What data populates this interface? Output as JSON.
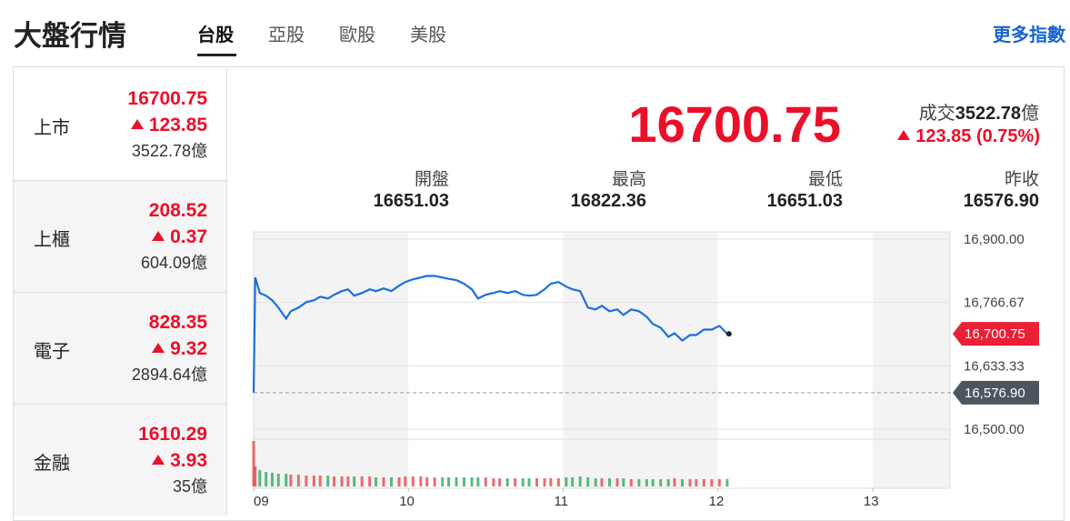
{
  "header": {
    "title": "大盤行情",
    "tabs": [
      "台股",
      "亞股",
      "歐股",
      "美股"
    ],
    "more": "更多指數"
  },
  "unit": "億",
  "indices": [
    {
      "name": "上市",
      "price": "16700.75",
      "change": "123.85",
      "volume": "3522.78"
    },
    {
      "name": "上櫃",
      "price": "208.52",
      "change": "0.37",
      "volume": "604.09"
    },
    {
      "name": "電子",
      "price": "828.35",
      "change": "9.32",
      "volume": "2894.64"
    },
    {
      "name": "金融",
      "price": "1610.29",
      "change": "3.93",
      "volume": "35"
    }
  ],
  "quote": {
    "price": "16700.75",
    "volume_label": "成交",
    "volume": "3522.78",
    "change": "123.85",
    "change_pct": "(0.75%)",
    "stats": [
      {
        "label": "開盤",
        "value": "16651.03"
      },
      {
        "label": "最高",
        "value": "16822.36"
      },
      {
        "label": "最低",
        "value": "16651.03"
      },
      {
        "label": "昨收",
        "value": "16576.90"
      }
    ]
  },
  "chart_data": {
    "type": "line",
    "color": "#1a6fe0",
    "x": [
      9.0,
      9.01,
      9.04,
      9.08,
      9.12,
      9.16,
      9.21,
      9.24,
      9.29,
      9.34,
      9.39,
      9.43,
      9.48,
      9.52,
      9.57,
      9.61,
      9.65,
      9.7,
      9.75,
      9.79,
      9.84,
      9.89,
      9.94,
      9.98,
      10.03,
      10.08,
      10.12,
      10.17,
      10.22,
      10.26,
      10.31,
      10.36,
      10.41,
      10.45,
      10.5,
      10.55,
      10.59,
      10.64,
      10.69,
      10.74,
      10.78,
      10.83,
      10.88,
      10.92,
      10.97,
      11.02,
      11.06,
      11.11,
      11.16,
      11.21,
      11.25,
      11.3,
      11.35,
      11.39,
      11.44,
      11.49,
      11.54,
      11.58,
      11.63,
      11.68,
      11.72,
      11.77,
      11.82,
      11.86,
      11.91,
      11.96,
      12.01,
      12.06
    ],
    "values": [
      16577,
      16819.2,
      16786.5,
      16780.8,
      16771.2,
      16755.8,
      16732.7,
      16748.1,
      16755.8,
      16767.3,
      16771.2,
      16778.8,
      16775,
      16782.7,
      16790.4,
      16794.2,
      16780.8,
      16786.5,
      16794.2,
      16790.4,
      16796.2,
      16790.4,
      16801.9,
      16809.6,
      16815.2,
      16819,
      16822.36,
      16822.36,
      16819,
      16816.2,
      16813.5,
      16805.8,
      16794.2,
      16775,
      16782.7,
      16786.5,
      16790.4,
      16786.5,
      16790.4,
      16782.7,
      16780.8,
      16782.7,
      16794.2,
      16805.8,
      16809.6,
      16800,
      16794.2,
      16790.4,
      16755.8,
      16751.9,
      16759.6,
      16748.1,
      16751.9,
      16740.4,
      16751.9,
      16748.1,
      16736.5,
      16721.2,
      16713.5,
      16694.2,
      16701.9,
      16686.5,
      16698.1,
      16698.1,
      16709.6,
      16709.6,
      16717.3,
      16700.75
    ],
    "volume": {
      "up_color": "#e5484d",
      "down_color": "#2ea866",
      "values": [
        50,
        22,
        18,
        16,
        15,
        14,
        14,
        13,
        13,
        12,
        12,
        12,
        12,
        11,
        11,
        11,
        11,
        11,
        11,
        10,
        10,
        10,
        10,
        11,
        11,
        11,
        10,
        10,
        10,
        10,
        10,
        10,
        10,
        10,
        10,
        9,
        9,
        9,
        9,
        9,
        9,
        9,
        9,
        9,
        9,
        10,
        10,
        11,
        10,
        9,
        9,
        9,
        9,
        9,
        8,
        8,
        8,
        8,
        8,
        8,
        9,
        8,
        8,
        8,
        8,
        8,
        8,
        8
      ]
    },
    "xlim": [
      9,
      13.5
    ],
    "xticks": [
      {
        "value": 9,
        "label": "09"
      },
      10,
      11,
      12,
      13
    ],
    "ylim": [
      16485,
      16915
    ],
    "yticks": [
      {
        "value": 16900,
        "label": "16,900.00"
      },
      {
        "value": 16766.67,
        "label": "16,766.67"
      },
      {
        "value": 16633.33,
        "label": "16,633.33"
      },
      {
        "value": 16500,
        "label": "16,500.00"
      }
    ],
    "grid": true,
    "reference": {
      "value": 16576.9,
      "label": "16,576.90"
    },
    "last": {
      "value": 16700.75,
      "label": "16,700.75"
    }
  }
}
